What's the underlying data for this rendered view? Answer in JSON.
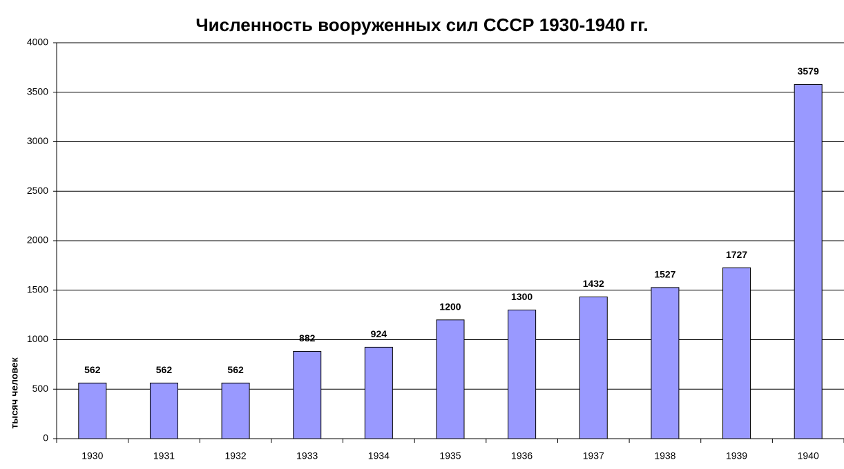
{
  "chart_data": {
    "type": "bar",
    "title": "Численность вооруженных сил СССР 1930-1940 гг.",
    "y_label": "тысяч человек",
    "categories": [
      "1930",
      "1931",
      "1932",
      "1933",
      "1934",
      "1935",
      "1936",
      "1937",
      "1938",
      "1939",
      "1940"
    ],
    "values": [
      562,
      562,
      562,
      882,
      924,
      1200,
      1300,
      1432,
      1527,
      1727,
      3579
    ],
    "color": "#9999ff",
    "ylim": [
      0,
      4000
    ],
    "yticks": [
      0,
      500,
      1000,
      1500,
      2000,
      2500,
      3000,
      3500,
      4000
    ],
    "grid": true
  }
}
